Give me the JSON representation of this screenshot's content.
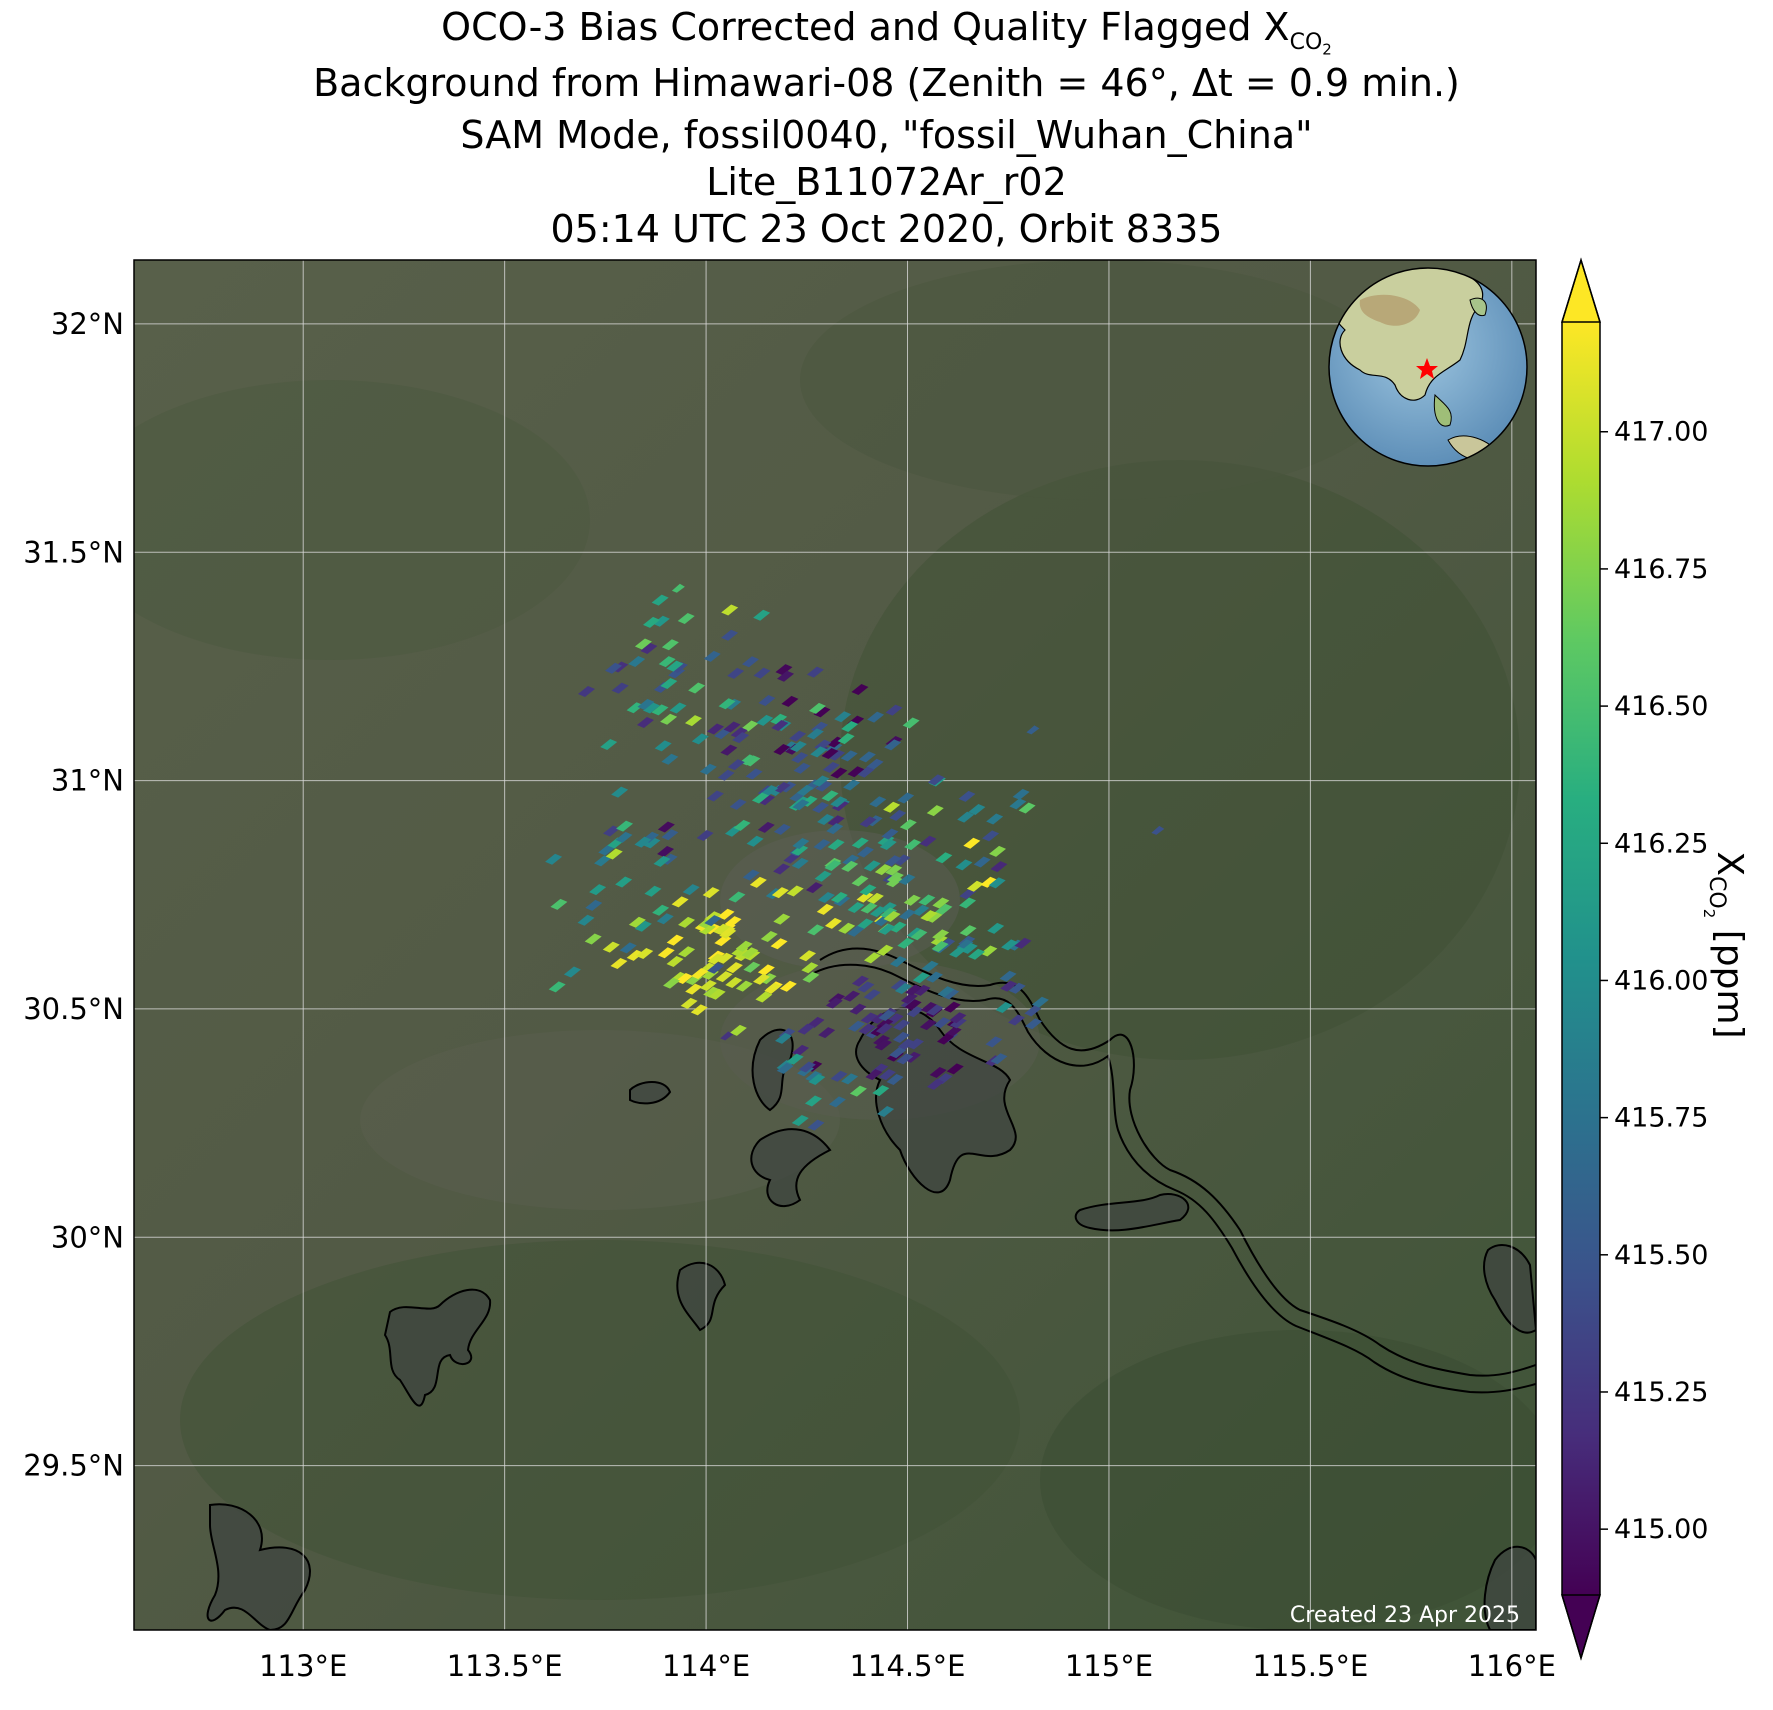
{
  "title": {
    "line1_prefix": "OCO-3 Bias Corrected and Quality Flagged X",
    "line1_sub": "CO",
    "line1_sub2": "2",
    "line2": "Background from Himawari-08 (Zenith = 46°, Δt =  0.9 min.)",
    "line3": "SAM Mode, fossil0040, \"fossil_Wuhan_China\"",
    "line4": "Lite_B11072Ar_r02",
    "line5": "05:14 UTC 23 Oct 2020, Orbit 8335"
  },
  "map": {
    "lon_range": [
      112.58,
      116.06
    ],
    "lat_range": [
      29.14,
      32.14
    ],
    "lon_ticks": [
      "113°E",
      "113.5°E",
      "114°E",
      "114.5°E",
      "115°E",
      "115.5°E",
      "116°E"
    ],
    "lon_values": [
      113.0,
      113.5,
      114.0,
      114.5,
      115.0,
      115.5,
      116.0
    ],
    "lat_ticks": [
      "32°N",
      "31.5°N",
      "31°N",
      "30.5°N",
      "30°N",
      "29.5°N"
    ],
    "lat_values": [
      32.0,
      31.5,
      31.0,
      30.5,
      30.0,
      29.5
    ],
    "credit": "Created 23 Apr 2025",
    "target_location": {
      "lon": 114.3,
      "lat": 30.6
    },
    "colors": {
      "background_land": "#4f5a45",
      "gridline": "#d9d9d9",
      "coastline": "#000000",
      "target_star": "#ff0000"
    }
  },
  "colorbar": {
    "label_prefix": "X",
    "label_sub": "CO",
    "label_sub2": "2",
    "label_suffix": " [ppm]",
    "min": 414.88,
    "max": 417.2,
    "ticks": [
      "415.00",
      "415.25",
      "415.50",
      "415.75",
      "416.00",
      "416.25",
      "416.50",
      "416.75",
      "417.00"
    ],
    "tick_values": [
      415.0,
      415.25,
      415.5,
      415.75,
      416.0,
      416.25,
      416.5,
      416.75,
      417.0
    ],
    "colormap": "viridis",
    "extend": "both"
  }
}
